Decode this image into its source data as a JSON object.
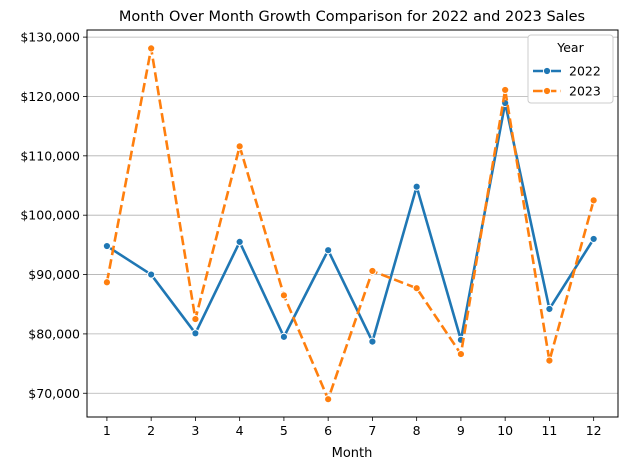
{
  "chart_data": {
    "type": "line",
    "title": "Month Over Month Growth Comparison for 2022 and 2023 Sales",
    "xlabel": "Month",
    "ylabel": "",
    "x": [
      1,
      2,
      3,
      4,
      5,
      6,
      7,
      8,
      9,
      10,
      11,
      12
    ],
    "x_tick_labels": [
      "1",
      "2",
      "3",
      "4",
      "5",
      "6",
      "7",
      "8",
      "9",
      "10",
      "11",
      "12"
    ],
    "y_ticks": [
      70000,
      80000,
      90000,
      100000,
      110000,
      120000,
      130000
    ],
    "y_tick_labels": [
      "$70,000",
      "$80,000",
      "$90,000",
      "$100,000",
      "$110,000",
      "$120,000",
      "$130,000"
    ],
    "ylim": [
      66000,
      131200
    ],
    "xlim": [
      0.55,
      12.55
    ],
    "grid": "horizontal",
    "legend": {
      "title": "Year",
      "placement": "top-right"
    },
    "series": [
      {
        "name": "2022",
        "color": "#1f77b4",
        "line_style": "solid",
        "values": [
          94800,
          90000,
          80100,
          95500,
          79500,
          94100,
          78700,
          104800,
          79000,
          118900,
          84200,
          96000
        ]
      },
      {
        "name": "2023",
        "color": "#ff7f0e",
        "line_style": "dashed",
        "values": [
          88700,
          128100,
          82500,
          111600,
          86500,
          69000,
          90600,
          87700,
          76600,
          121100,
          75500,
          102500
        ]
      }
    ]
  }
}
